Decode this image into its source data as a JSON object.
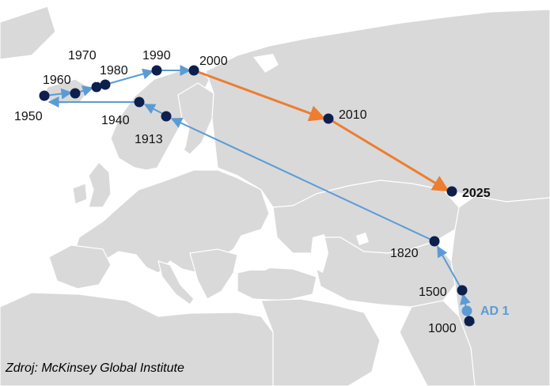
{
  "map": {
    "colors": {
      "sea": "#ffffff",
      "land": "#d9d9d9",
      "border": "#ffffff",
      "route_historic": "#5b9bd5",
      "route_future": "#ed7d31",
      "point": "#0d1f4d",
      "point_ad1": "#5b9bd5"
    },
    "points": [
      {
        "id": "p-1000",
        "label": "1000"
      },
      {
        "id": "p-ad1",
        "label": "AD 1"
      },
      {
        "id": "p-1500",
        "label": "1500"
      },
      {
        "id": "p-1820",
        "label": "1820"
      },
      {
        "id": "p-1913",
        "label": "1913"
      },
      {
        "id": "p-1940",
        "label": "1940"
      },
      {
        "id": "p-1950",
        "label": "1950"
      },
      {
        "id": "p-1960",
        "label": "1960"
      },
      {
        "id": "p-1970",
        "label": "1970"
      },
      {
        "id": "p-1980",
        "label": "1980"
      },
      {
        "id": "p-1990",
        "label": "1990"
      },
      {
        "id": "p-2000",
        "label": "2000"
      },
      {
        "id": "p-2010",
        "label": "2010"
      },
      {
        "id": "p-2025",
        "label": "2025"
      }
    ]
  },
  "source": "Zdroj: McKinsey Global Institute"
}
